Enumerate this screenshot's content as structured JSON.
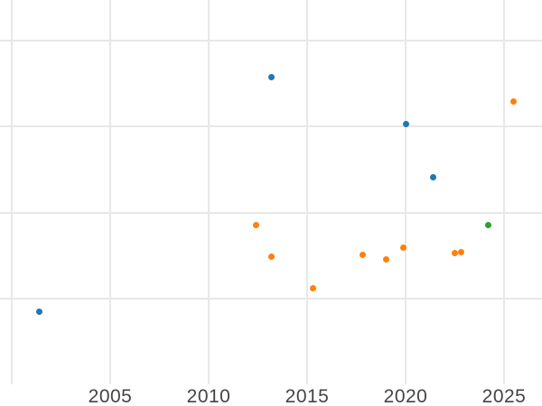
{
  "chart_data": {
    "type": "scatter",
    "title": "",
    "xlabel": "",
    "ylabel": "",
    "grid": true,
    "legend": "none-visible",
    "background_color": "#ffffff",
    "gridline_color": "#e8e8e8",
    "tick_label_color": "#444444",
    "x_axis": {
      "ticks": [
        {
          "label": "2005",
          "year": 2005
        },
        {
          "label": "2010",
          "year": 2010
        },
        {
          "label": "2015",
          "year": 2015
        },
        {
          "label": "2020",
          "year": 2020
        },
        {
          "label": "2025",
          "year": 2025
        }
      ],
      "gridline_years": [
        2000,
        2005,
        2010,
        2015,
        2020,
        2025
      ],
      "xlim": [
        1999.4,
        2026.9
      ]
    },
    "y_axis": {
      "tick_labels_visible": false,
      "gridline_units": [
        1,
        2,
        3,
        4
      ],
      "ylim": [
        0,
        4.47
      ],
      "unit_note": "y-axis labels cropped out of view; values estimated in gridline-spacing units above bottom edge"
    },
    "series": [
      {
        "name": "blue-series",
        "color": "#1f77b4",
        "points": [
          {
            "x": 2001.4,
            "y": 0.85
          },
          {
            "x": 2013.2,
            "y": 3.58
          },
          {
            "x": 2020.0,
            "y": 3.03
          },
          {
            "x": 2021.4,
            "y": 2.41
          }
        ]
      },
      {
        "name": "orange-series",
        "color": "#ff7f0e",
        "points": [
          {
            "x": 2012.4,
            "y": 1.85
          },
          {
            "x": 2013.2,
            "y": 1.49
          },
          {
            "x": 2015.3,
            "y": 1.12
          },
          {
            "x": 2017.8,
            "y": 1.51
          },
          {
            "x": 2019.0,
            "y": 1.46
          },
          {
            "x": 2019.9,
            "y": 1.59
          },
          {
            "x": 2022.5,
            "y": 1.53
          },
          {
            "x": 2022.8,
            "y": 1.54
          },
          {
            "x": 2025.5,
            "y": 3.29
          }
        ]
      },
      {
        "name": "green-series",
        "color": "#2ca02c",
        "points": [
          {
            "x": 2024.2,
            "y": 1.85
          }
        ]
      }
    ]
  }
}
